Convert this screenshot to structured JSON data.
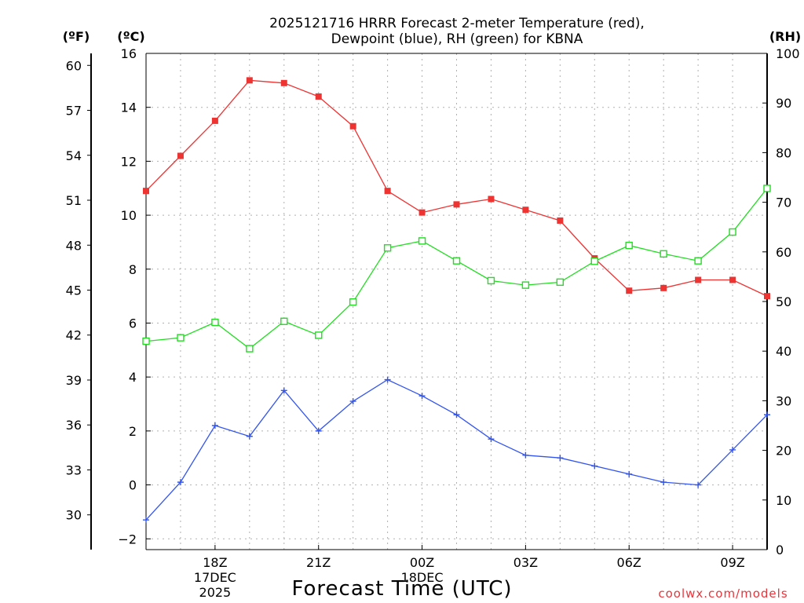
{
  "chart_data": {
    "type": "line",
    "title_line1": "2025121716 HRRR Forecast 2-meter Temperature (red),",
    "title_line2": "Dewpoint (blue), RH (green) for KBNA",
    "xlabel": "Forecast Time (UTC)",
    "credit": "coolwx.com/models",
    "units": {
      "f": "(ºF)",
      "c": "(ºC)",
      "rh": "(RH)"
    },
    "x": [
      16,
      17,
      18,
      19,
      20,
      21,
      22,
      23,
      24,
      25,
      26,
      27,
      28,
      29,
      30,
      31,
      32,
      33,
      34
    ],
    "xlim": [
      16,
      34
    ],
    "x_ticks": [
      {
        "x": 18,
        "label": "18Z",
        "sub1": "17DEC",
        "sub2": "2025"
      },
      {
        "x": 21,
        "label": "21Z",
        "sub1": "",
        "sub2": ""
      },
      {
        "x": 24,
        "label": "00Z",
        "sub1": "18DEC",
        "sub2": ""
      },
      {
        "x": 27,
        "label": "03Z",
        "sub1": "",
        "sub2": ""
      },
      {
        "x": 30,
        "label": "06Z",
        "sub1": "",
        "sub2": ""
      },
      {
        "x": 33,
        "label": "09Z",
        "sub1": "",
        "sub2": ""
      }
    ],
    "ylim_c": [
      -2.4,
      16
    ],
    "yticks_c": [
      "16",
      "14",
      "12",
      "10",
      "8",
      "6",
      "4",
      "2",
      "0",
      "−2"
    ],
    "yticks_f": [
      "60",
      "57",
      "54",
      "51",
      "48",
      "45",
      "42",
      "39",
      "36",
      "33",
      "30"
    ],
    "ylim_rh": [
      0,
      100
    ],
    "yticks_rh": [
      "100",
      "90",
      "80",
      "70",
      "60",
      "50",
      "40",
      "30",
      "20",
      "10",
      "0"
    ],
    "series": [
      {
        "name": "Temperature",
        "axis": "c",
        "color": "#ee3333",
        "marker": "filled-square",
        "values": [
          10.9,
          12.2,
          13.5,
          15.0,
          14.9,
          14.4,
          13.3,
          10.9,
          10.1,
          10.4,
          10.6,
          10.2,
          9.8,
          8.4,
          7.2,
          7.3,
          7.6,
          7.6,
          7.0
        ]
      },
      {
        "name": "Dewpoint",
        "axis": "c",
        "color": "#3355ee",
        "marker": "plus",
        "values": [
          -1.3,
          0.1,
          2.2,
          1.8,
          3.5,
          2.0,
          3.1,
          3.9,
          3.3,
          2.6,
          1.7,
          1.1,
          1.0,
          0.7,
          0.4,
          0.1,
          0.0,
          1.3,
          2.6
        ]
      },
      {
        "name": "RH",
        "axis": "rh",
        "color": "#22dd22",
        "marker": "open-square",
        "values": [
          42.0,
          42.7,
          45.8,
          40.5,
          46.0,
          43.2,
          49.9,
          60.8,
          62.2,
          58.2,
          54.2,
          53.3,
          53.9,
          58.1,
          61.3,
          59.6,
          58.2,
          64.0,
          72.8
        ]
      }
    ]
  }
}
